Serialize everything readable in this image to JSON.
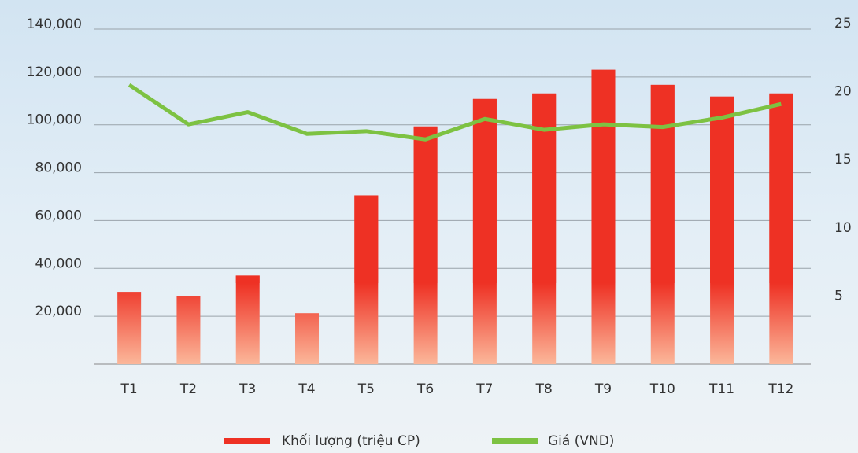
{
  "chart_data": {
    "type": "bar_line",
    "categories": [
      "T1",
      "T2",
      "T3",
      "T4",
      "T5",
      "T6",
      "T7",
      "T8",
      "T9",
      "T10",
      "T11",
      "T12"
    ],
    "series": [
      {
        "name": "Khối lượng (triệu CP)",
        "color": "#ee3124",
        "type": "bar",
        "values": [
          30200,
          28500,
          37000,
          21300,
          70500,
          99300,
          110800,
          113100,
          123000,
          116700,
          111800,
          113100
        ]
      },
      {
        "name": "Giá (VND)",
        "color": "#7dc242",
        "type": "line",
        "axis": "y2",
        "values": [
          20.5,
          17.6,
          18.5,
          16.9,
          17.1,
          16.5,
          18.0,
          17.2,
          17.6,
          17.4,
          18.1,
          19.1
        ]
      }
    ],
    "ylim": [
      0,
      140000
    ],
    "yticks": [
      {
        "value": 20000,
        "label": "20,000"
      },
      {
        "value": 40000,
        "label": "40,000"
      },
      {
        "value": 60000,
        "label": "60,000"
      },
      {
        "value": 80000,
        "label": "80,000"
      },
      {
        "value": 100000,
        "label": "100,000"
      },
      {
        "value": 120000,
        "label": "120,000"
      },
      {
        "value": 140000,
        "label": "140,000"
      }
    ],
    "y2lim": [
      0,
      25
    ],
    "y2ticks": [
      5,
      10,
      15,
      20,
      25
    ],
    "grid": true,
    "legend": "bottom"
  }
}
